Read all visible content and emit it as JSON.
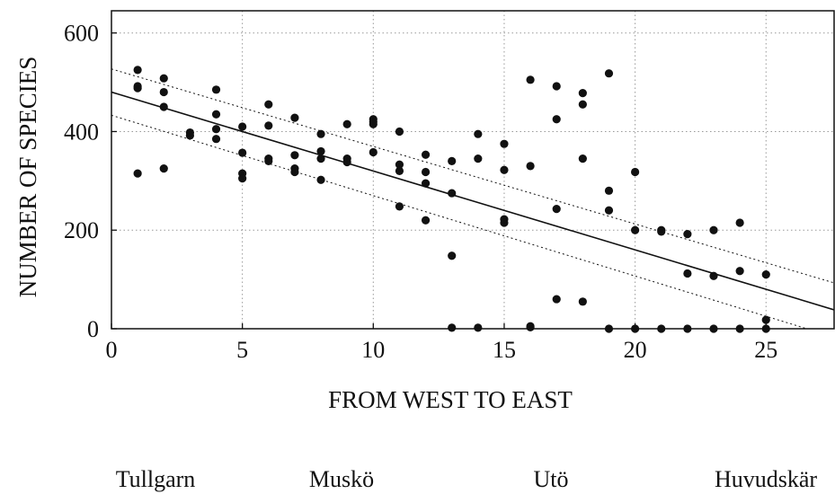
{
  "chart_data": {
    "type": "scatter",
    "title": "",
    "xlabel": "FROM WEST TO EAST",
    "ylabel": "NUMBER OF SPECIES",
    "xlim": [
      0,
      27.6
    ],
    "ylim": [
      0,
      645
    ],
    "xticks": [
      0,
      5,
      10,
      15,
      20,
      25
    ],
    "yticks": [
      0,
      200,
      400,
      600
    ],
    "grid": true,
    "sites": [
      "Tullgarn",
      "Muskö",
      "Utö",
      "Huvudskär"
    ],
    "points": [
      [
        1,
        525
      ],
      [
        1,
        492
      ],
      [
        1,
        488
      ],
      [
        1,
        315
      ],
      [
        2,
        508
      ],
      [
        2,
        480
      ],
      [
        2,
        450
      ],
      [
        2,
        325
      ],
      [
        3,
        398
      ],
      [
        3,
        392
      ],
      [
        4,
        485
      ],
      [
        4,
        435
      ],
      [
        4,
        405
      ],
      [
        4,
        385
      ],
      [
        5,
        410
      ],
      [
        5,
        357
      ],
      [
        5,
        315
      ],
      [
        5,
        305
      ],
      [
        6,
        455
      ],
      [
        6,
        412
      ],
      [
        6,
        345
      ],
      [
        6,
        340
      ],
      [
        7,
        428
      ],
      [
        7,
        352
      ],
      [
        7,
        325
      ],
      [
        7,
        318
      ],
      [
        8,
        395
      ],
      [
        8,
        360
      ],
      [
        8,
        345
      ],
      [
        8,
        302
      ],
      [
        9,
        415
      ],
      [
        9,
        345
      ],
      [
        9,
        338
      ],
      [
        10,
        425
      ],
      [
        10,
        420
      ],
      [
        10,
        415
      ],
      [
        10,
        358
      ],
      [
        11,
        400
      ],
      [
        11,
        333
      ],
      [
        11,
        320
      ],
      [
        11,
        248
      ],
      [
        12,
        353
      ],
      [
        12,
        318
      ],
      [
        12,
        295
      ],
      [
        12,
        220
      ],
      [
        13,
        340
      ],
      [
        13,
        275
      ],
      [
        13,
        148
      ],
      [
        13,
        2
      ],
      [
        14,
        395
      ],
      [
        14,
        345
      ],
      [
        14,
        2
      ],
      [
        15,
        375
      ],
      [
        15,
        322
      ],
      [
        15,
        222
      ],
      [
        15,
        215
      ],
      [
        16,
        505
      ],
      [
        16,
        330
      ],
      [
        16,
        5
      ],
      [
        16,
        3
      ],
      [
        17,
        492
      ],
      [
        17,
        425
      ],
      [
        17,
        243
      ],
      [
        17,
        60
      ],
      [
        18,
        478
      ],
      [
        18,
        455
      ],
      [
        18,
        345
      ],
      [
        18,
        55
      ],
      [
        19,
        518
      ],
      [
        19,
        280
      ],
      [
        19,
        240
      ],
      [
        19,
        0
      ],
      [
        20,
        318
      ],
      [
        20,
        200
      ],
      [
        20,
        0
      ],
      [
        21,
        200
      ],
      [
        21,
        197
      ],
      [
        21,
        0
      ],
      [
        22,
        192
      ],
      [
        22,
        112
      ],
      [
        22,
        0
      ],
      [
        23,
        200
      ],
      [
        23,
        107
      ],
      [
        23,
        0
      ],
      [
        24,
        215
      ],
      [
        24,
        117
      ],
      [
        24,
        0
      ],
      [
        25,
        110
      ],
      [
        25,
        18
      ],
      [
        25,
        0
      ]
    ],
    "regression": {
      "intercept": 480,
      "slope": -16.0
    },
    "confidence_upper": [
      [
        0,
        527
      ],
      [
        27.6,
        93
      ]
    ],
    "confidence_lower": [
      [
        0,
        433
      ],
      [
        27.6,
        -17
      ]
    ]
  }
}
